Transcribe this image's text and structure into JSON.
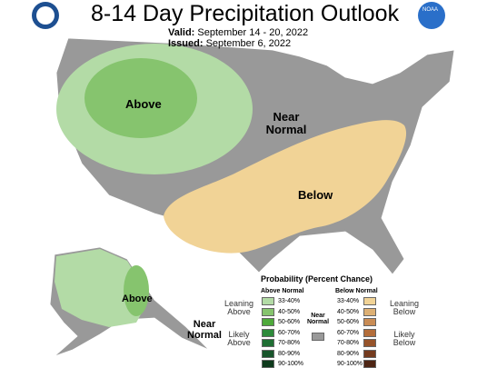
{
  "header": {
    "title": "8-14 Day Precipitation Outlook",
    "valid_label": "Valid:",
    "valid": "September 14 - 20, 2022",
    "issued_label": "Issued:",
    "issued": "September 6, 2022",
    "noaa": "NOAA"
  },
  "map": {
    "conus_above": "Above",
    "conus_near": "Near Normal",
    "conus_below": "Below",
    "alaska_above": "Above",
    "alaska_near": "Near Normal",
    "colors": {
      "near": "#999999",
      "above_light": "#b3dba6",
      "above_mid": "#86c46e",
      "below_light": "#f1d396"
    }
  },
  "legend": {
    "title": "Probability (Percent Chance)",
    "above_heading": "Above Normal",
    "below_heading": "Below Normal",
    "near_heading": "Near Normal",
    "near_color": "#999999",
    "leaning_above": "Leaning Above",
    "likely_above": "Likely Above",
    "leaning_below": "Leaning Below",
    "likely_below": "Likely Below",
    "above": [
      {
        "label": "33-40%",
        "color": "#b3dba6"
      },
      {
        "label": "40-50%",
        "color": "#86c46e"
      },
      {
        "label": "50-60%",
        "color": "#4ea93b"
      },
      {
        "label": "60-70%",
        "color": "#2d8a3a"
      },
      {
        "label": "70-80%",
        "color": "#1f6e33"
      },
      {
        "label": "80-90%",
        "color": "#17542a"
      },
      {
        "label": "90-100%",
        "color": "#0e3a1c"
      }
    ],
    "below": [
      {
        "label": "33-40%",
        "color": "#f1d396"
      },
      {
        "label": "40-50%",
        "color": "#ddb074"
      },
      {
        "label": "50-60%",
        "color": "#c98c55"
      },
      {
        "label": "60-70%",
        "color": "#b36d3a"
      },
      {
        "label": "70-80%",
        "color": "#96532a"
      },
      {
        "label": "80-90%",
        "color": "#743b1e"
      },
      {
        "label": "90-100%",
        "color": "#4e2514"
      }
    ]
  }
}
